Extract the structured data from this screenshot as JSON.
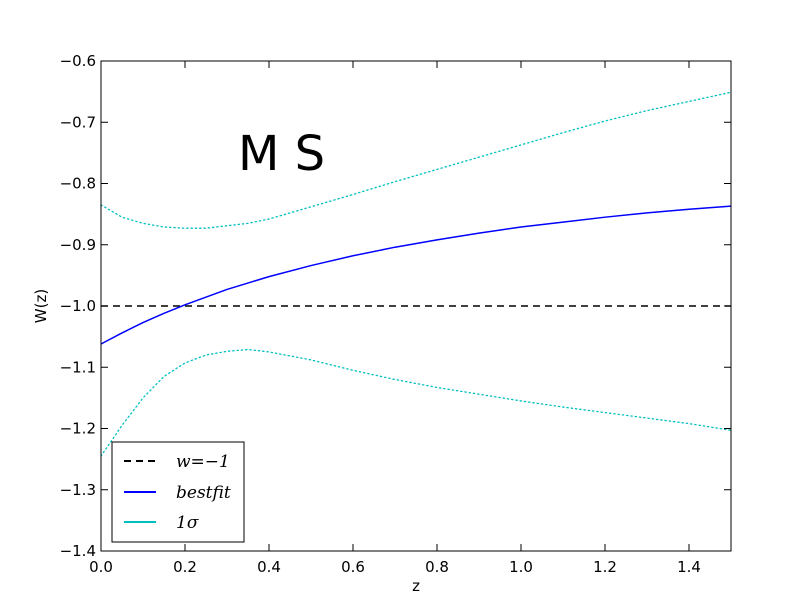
{
  "chart_data": {
    "type": "line",
    "title": "",
    "xlabel": "z",
    "ylabel": "W(z)",
    "xlim": [
      0.0,
      1.5
    ],
    "ylim": [
      -1.4,
      -0.6
    ],
    "grid": false,
    "legend_location": "bottom-left",
    "annotation": "M S",
    "xticks": [
      "0.0",
      "0.2",
      "0.4",
      "0.6",
      "0.8",
      "1.0",
      "1.2",
      "1.4"
    ],
    "yticks": [
      "−0.6",
      "−0.7",
      "−0.8",
      "−0.9",
      "−1.0",
      "−1.1",
      "−1.2",
      "−1.3",
      "−1.4"
    ],
    "series": [
      {
        "name": "w=−1",
        "style": "dashed",
        "color": "#000000",
        "x": [
          0.0,
          1.5
        ],
        "y": [
          -1.0,
          -1.0
        ]
      },
      {
        "name": "bestfit",
        "style": "solid",
        "color": "#0000ff",
        "x": [
          0.0,
          0.05,
          0.1,
          0.15,
          0.2,
          0.3,
          0.4,
          0.5,
          0.6,
          0.7,
          0.8,
          0.9,
          1.0,
          1.1,
          1.2,
          1.3,
          1.4,
          1.5
        ],
        "y": [
          -1.062,
          -1.044,
          -1.027,
          -1.012,
          -0.998,
          -0.973,
          -0.952,
          -0.934,
          -0.918,
          -0.904,
          -0.892,
          -0.881,
          -0.871,
          -0.863,
          -0.855,
          -0.848,
          -0.842,
          -0.837
        ]
      },
      {
        "name": "1σ",
        "style": "dotted",
        "color": "#00bfbf",
        "x": [
          0.0,
          0.05,
          0.1,
          0.15,
          0.2,
          0.25,
          0.3,
          0.35,
          0.4,
          0.5,
          0.6,
          0.7,
          0.8,
          0.9,
          1.0,
          1.1,
          1.2,
          1.3,
          1.4,
          1.5
        ],
        "y": [
          -0.835,
          -0.855,
          -0.865,
          -0.871,
          -0.873,
          -0.873,
          -0.869,
          -0.865,
          -0.858,
          -0.838,
          -0.818,
          -0.797,
          -0.777,
          -0.757,
          -0.737,
          -0.717,
          -0.698,
          -0.681,
          -0.666,
          -0.651
        ]
      },
      {
        "name": "",
        "style": "dotted",
        "color": "#00bfbf",
        "x": [
          0.0,
          0.05,
          0.1,
          0.15,
          0.2,
          0.25,
          0.3,
          0.35,
          0.4,
          0.5,
          0.6,
          0.7,
          0.8,
          0.9,
          1.0,
          1.1,
          1.2,
          1.3,
          1.4,
          1.5
        ],
        "y": [
          -1.245,
          -1.195,
          -1.15,
          -1.115,
          -1.093,
          -1.08,
          -1.074,
          -1.071,
          -1.075,
          -1.088,
          -1.105,
          -1.12,
          -1.133,
          -1.144,
          -1.155,
          -1.165,
          -1.174,
          -1.183,
          -1.192,
          -1.203
        ]
      }
    ]
  }
}
